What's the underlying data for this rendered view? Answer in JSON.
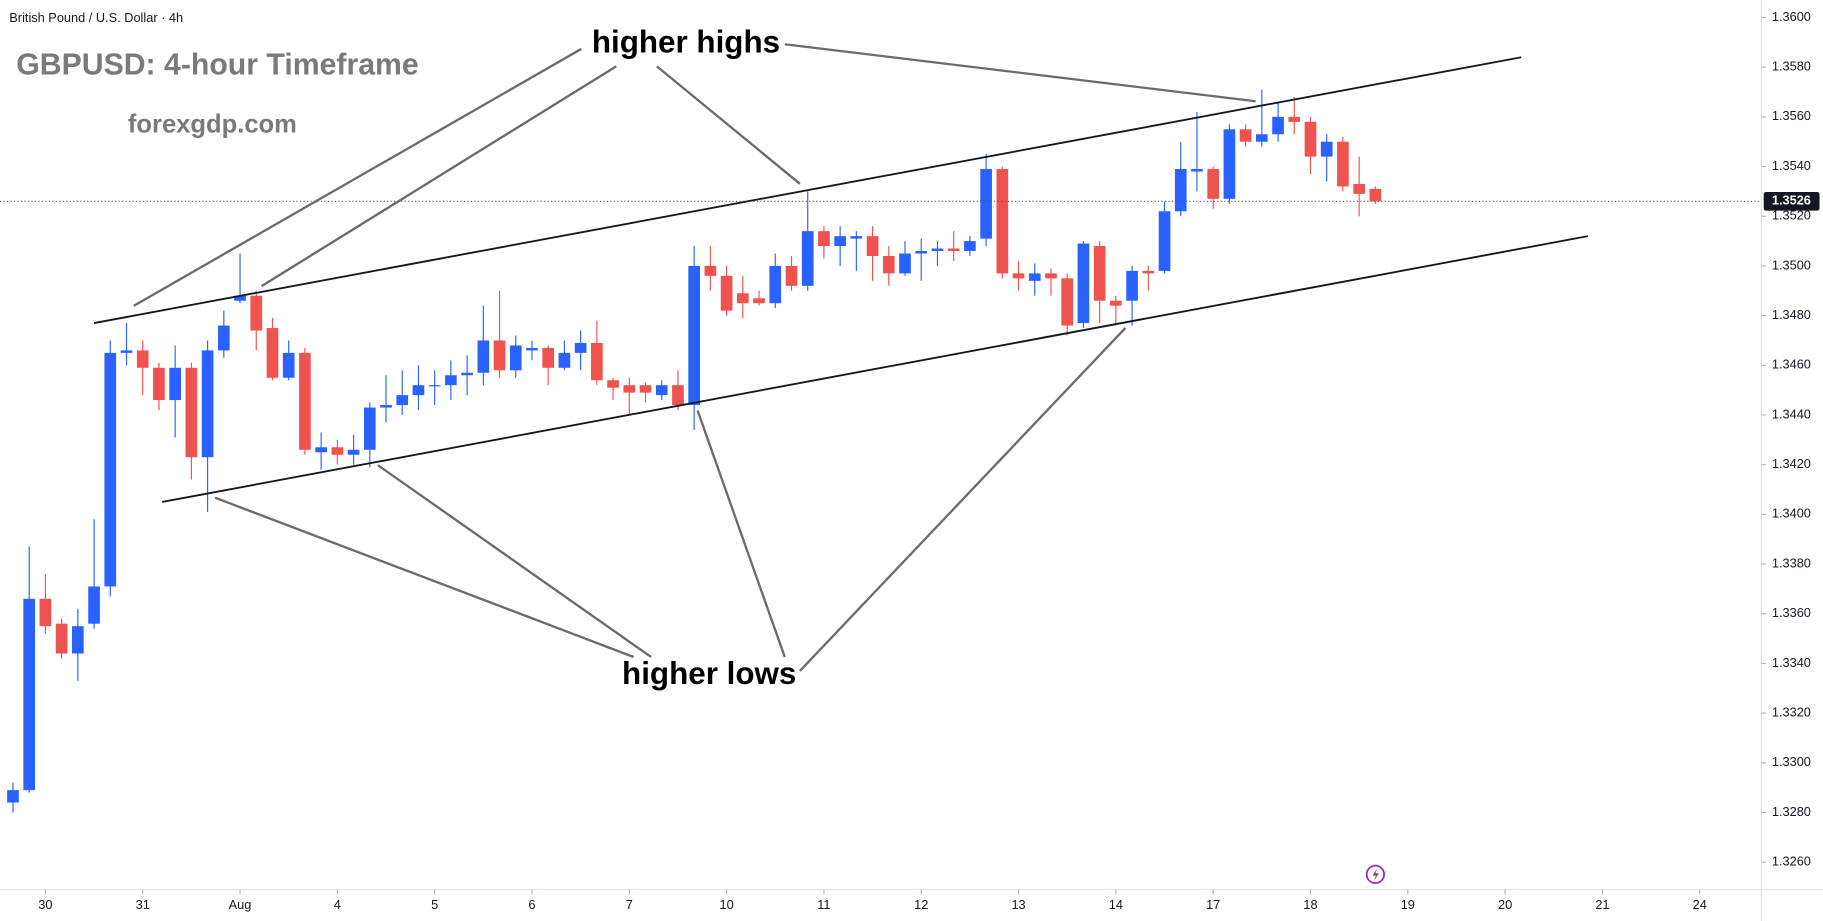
{
  "chart_data": {
    "type": "candlestick",
    "header": "British Pound / U.S. Dollar · 4h",
    "title": "GBPUSD: 4-hour Timeframe",
    "subtitle": "forexgdp.com",
    "annotations": [
      "higher highs",
      "higher lows"
    ],
    "up_color": "#2962ff",
    "down_color": "#ef5350",
    "open": [
      1.3284,
      1.3289,
      1.3366,
      1.3356,
      1.3344,
      1.3356,
      1.3371,
      1.3465,
      1.3466,
      1.3459,
      1.3446,
      1.3459,
      1.3423,
      1.3466,
      1.3486,
      1.3488,
      1.3475,
      1.3455,
      1.3465,
      1.3425,
      1.3427,
      1.3424,
      1.3426,
      1.3443,
      1.3444,
      1.3448,
      1.3452,
      1.3452,
      1.3456,
      1.3457,
      1.347,
      1.3458,
      1.3466,
      1.3467,
      1.3459,
      1.3465,
      1.3469,
      1.3454,
      1.3452,
      1.3452,
      1.3448,
      1.3452,
      1.3444,
      1.35,
      1.3496,
      1.3489,
      1.3487,
      1.3485,
      1.35,
      1.3492,
      1.3514,
      1.3508,
      1.3511,
      1.3512,
      1.3504,
      1.3497,
      1.3505,
      1.3506,
      1.3507,
      1.3506,
      1.3511,
      1.3539,
      1.3497,
      1.3494,
      1.3497,
      1.3495,
      1.3477,
      1.3508,
      1.3486,
      1.3486,
      1.3498,
      1.3498,
      1.3522,
      1.3538,
      1.3539,
      1.3527,
      1.3555,
      1.355,
      1.3553,
      1.356,
      1.3558,
      1.3544,
      1.355,
      1.3533,
      1.3531
    ],
    "high": [
      1.3292,
      1.3387,
      1.3376,
      1.3358,
      1.3362,
      1.3398,
      1.347,
      1.3477,
      1.347,
      1.3461,
      1.3468,
      1.3461,
      1.347,
      1.3482,
      1.3505,
      1.349,
      1.3479,
      1.347,
      1.3467,
      1.3433,
      1.343,
      1.3432,
      1.3445,
      1.3456,
      1.3458,
      1.346,
      1.3458,
      1.3462,
      1.3464,
      1.3484,
      1.349,
      1.3472,
      1.347,
      1.3468,
      1.347,
      1.3474,
      1.3478,
      1.3455,
      1.3455,
      1.3453,
      1.3454,
      1.3458,
      1.3508,
      1.3508,
      1.35,
      1.3496,
      1.349,
      1.3505,
      1.3504,
      1.353,
      1.3516,
      1.3516,
      1.3514,
      1.3516,
      1.3508,
      1.351,
      1.3511,
      1.351,
      1.3514,
      1.3512,
      1.3545,
      1.354,
      1.3502,
      1.3501,
      1.3499,
      1.3497,
      1.351,
      1.351,
      1.3488,
      1.35,
      1.35,
      1.3526,
      1.355,
      1.3562,
      1.354,
      1.3557,
      1.3557,
      1.3571,
      1.3566,
      1.3568,
      1.356,
      1.3553,
      1.3552,
      1.3544,
      1.3532
    ],
    "low": [
      1.328,
      1.3288,
      1.3352,
      1.3342,
      1.3333,
      1.3354,
      1.3367,
      1.346,
      1.3448,
      1.3442,
      1.3431,
      1.3414,
      1.3401,
      1.3463,
      1.3485,
      1.3466,
      1.3454,
      1.3454,
      1.3424,
      1.3418,
      1.342,
      1.342,
      1.3419,
      1.3437,
      1.344,
      1.3442,
      1.3444,
      1.3446,
      1.3448,
      1.3452,
      1.3455,
      1.3455,
      1.3462,
      1.3452,
      1.3458,
      1.3458,
      1.3452,
      1.3446,
      1.344,
      1.3445,
      1.3446,
      1.3442,
      1.3434,
      1.349,
      1.348,
      1.3479,
      1.3484,
      1.3483,
      1.349,
      1.349,
      1.3503,
      1.35,
      1.3498,
      1.3494,
      1.3492,
      1.3496,
      1.3494,
      1.35,
      1.3502,
      1.3504,
      1.3508,
      1.3495,
      1.349,
      1.3488,
      1.3488,
      1.3472,
      1.3475,
      1.3477,
      1.3476,
      1.3476,
      1.349,
      1.3497,
      1.352,
      1.353,
      1.3523,
      1.3525,
      1.3548,
      1.3548,
      1.355,
      1.3553,
      1.3537,
      1.3534,
      1.353,
      1.352,
      1.3525
    ],
    "close": [
      1.3289,
      1.3366,
      1.3355,
      1.3344,
      1.3355,
      1.3371,
      1.3465,
      1.3466,
      1.3459,
      1.3446,
      1.3459,
      1.3423,
      1.3466,
      1.3476,
      1.3488,
      1.3474,
      1.3455,
      1.3465,
      1.3426,
      1.3427,
      1.3424,
      1.3426,
      1.3443,
      1.3444,
      1.3448,
      1.3452,
      1.3452,
      1.3456,
      1.3457,
      1.347,
      1.3458,
      1.3468,
      1.3467,
      1.3459,
      1.3465,
      1.3469,
      1.3454,
      1.3451,
      1.3449,
      1.3449,
      1.3452,
      1.3444,
      1.35,
      1.3496,
      1.3482,
      1.3485,
      1.3485,
      1.35,
      1.3492,
      1.3514,
      1.3508,
      1.3512,
      1.3512,
      1.3504,
      1.3497,
      1.3505,
      1.3506,
      1.3507,
      1.3506,
      1.351,
      1.3539,
      1.3497,
      1.3495,
      1.3497,
      1.3495,
      1.3476,
      1.3509,
      1.3486,
      1.3484,
      1.3498,
      1.3497,
      1.3522,
      1.3539,
      1.3539,
      1.3527,
      1.3555,
      1.355,
      1.3553,
      1.356,
      1.3558,
      1.3544,
      1.355,
      1.3532,
      1.3529,
      1.3526
    ],
    "xlim": [
      -0.8,
      107.8
    ],
    "xticks": [
      {
        "value": 2,
        "label": "30"
      },
      {
        "value": 8,
        "label": "31"
      },
      {
        "value": 14,
        "label": "Aug"
      },
      {
        "value": 20,
        "label": "4"
      },
      {
        "value": 26,
        "label": "5"
      },
      {
        "value": 32,
        "label": "6"
      },
      {
        "value": 38,
        "label": "7"
      },
      {
        "value": 44,
        "label": "10"
      },
      {
        "value": 50,
        "label": "11"
      },
      {
        "value": 56,
        "label": "12"
      },
      {
        "value": 62,
        "label": "13"
      },
      {
        "value": 68,
        "label": "14"
      },
      {
        "value": 74,
        "label": "17"
      },
      {
        "value": 80,
        "label": "18"
      },
      {
        "value": 86,
        "label": "19"
      },
      {
        "value": 92,
        "label": "20"
      },
      {
        "value": 98,
        "label": "21"
      },
      {
        "value": 104,
        "label": "24"
      }
    ],
    "ylim": [
      1.3249,
      1.3607
    ],
    "yticks": [
      {
        "value": 1.326,
        "label": "1.3260"
      },
      {
        "value": 1.328,
        "label": "1.3280"
      },
      {
        "value": 1.33,
        "label": "1.3300"
      },
      {
        "value": 1.332,
        "label": "1.3320"
      },
      {
        "value": 1.334,
        "label": "1.3340"
      },
      {
        "value": 1.336,
        "label": "1.3360"
      },
      {
        "value": 1.338,
        "label": "1.3380"
      },
      {
        "value": 1.34,
        "label": "1.3400"
      },
      {
        "value": 1.342,
        "label": "1.3420"
      },
      {
        "value": 1.344,
        "label": "1.3440"
      },
      {
        "value": 1.346,
        "label": "1.3460"
      },
      {
        "value": 1.348,
        "label": "1.3480"
      },
      {
        "value": 1.35,
        "label": "1.3500"
      },
      {
        "value": 1.352,
        "label": "1.3520"
      },
      {
        "value": 1.354,
        "label": "1.3540"
      },
      {
        "value": 1.356,
        "label": "1.3560"
      },
      {
        "value": 1.358,
        "label": "1.3580"
      },
      {
        "value": 1.36,
        "label": "1.3600"
      }
    ],
    "last_price": {
      "value": 1.3526,
      "label": "1.3526"
    },
    "trendlines": [
      {
        "x": [
          5.0,
          93.0
        ],
        "values": [
          1.3477,
          1.3584
        ]
      },
      {
        "x": [
          9.2,
          97.1
        ],
        "values": [
          1.3405,
          1.3512
        ]
      }
    ]
  }
}
